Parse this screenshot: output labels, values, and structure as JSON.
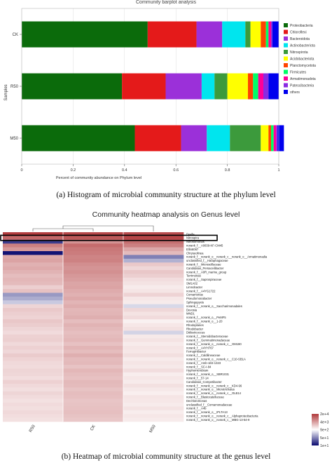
{
  "figure_a": {
    "caption": "(a) Histogram of microbial community structure at the phylum level"
  },
  "figure_b": {
    "caption": "(b) Heatmap of microbial community structure at the genus level"
  },
  "colors": {
    "highlight_box": "#000000",
    "grid": "#dddddd"
  },
  "chart_data": [
    {
      "type": "bar",
      "orientation": "horizontal",
      "stacked": true,
      "title": "Community barplot analysis",
      "xlabel": "Percent of community abundance on Phylum level",
      "ylabel": "Samples",
      "xlim": [
        0,
        1
      ],
      "xticks": [
        "0",
        "0.2",
        "0.4",
        "0.6",
        "0.8",
        "1"
      ],
      "categories": [
        "CK",
        "R50",
        "M50"
      ],
      "legend_position": "right",
      "series": [
        {
          "name": "Proteobacteria",
          "color": "#0b6b0b",
          "values": [
            0.49,
            0.39,
            0.44
          ]
        },
        {
          "name": "Chloroflexi",
          "color": "#e41a1a",
          "values": [
            0.19,
            0.17,
            0.18
          ]
        },
        {
          "name": "Bacteroidota",
          "color": "#9b30d9",
          "values": [
            0.1,
            0.14,
            0.1
          ]
        },
        {
          "name": "Actinobacteriota",
          "color": "#00e5ee",
          "values": [
            0.09,
            0.05,
            0.09
          ]
        },
        {
          "name": "Nitrospirota",
          "color": "#3c9a3c",
          "values": [
            0.02,
            0.05,
            0.12
          ]
        },
        {
          "name": "Acidobacteriota",
          "color": "#ffff00",
          "values": [
            0.04,
            0.08,
            0.03
          ]
        },
        {
          "name": "Planctomycetota",
          "color": "#ff4400",
          "values": [
            0.02,
            0.02,
            0.01
          ]
        },
        {
          "name": "Firmicutes",
          "color": "#00ff66",
          "values": [
            0.01,
            0.02,
            0.01
          ]
        },
        {
          "name": "Armatimonadota",
          "color": "#ff0099",
          "values": [
            0.01,
            0.02,
            0.01
          ]
        },
        {
          "name": "Patescibacteria",
          "color": "#8a2be2",
          "values": [
            0.005,
            0.02,
            0.005
          ]
        },
        {
          "name": "others",
          "color": "#0000ee",
          "values": [
            0.025,
            0.04,
            0.025
          ]
        }
      ]
    },
    {
      "type": "heatmap",
      "title": "Community heatmap analysis on Genus level",
      "columns": [
        "R50",
        "CK",
        "M50"
      ],
      "color_scale": {
        "colors": [
          "#0b0b70",
          "#ffffff",
          "#b0383a"
        ],
        "labels": [
          "2e+4",
          "4e+3",
          "9e+2",
          "5e+1",
          "1e+1"
        ]
      },
      "highlighted_row": "Nitrospira",
      "rows": [
        "Dyella",
        "Nitrospira",
        "Nitrosomonas",
        "norank_f__A0839-KF-CM45",
        "Ellin6067",
        "Chryseolinea",
        "norank_f__norank_o__norank_c__norank_o__Armatimonadia",
        "unclassified_f__Hafaphagaceae",
        "norank_f__Microscillaceae",
        "Candidatus_Persaceilibacter",
        "norank_f__A0R_marine_group",
        "Terrimonas",
        "norank_f__Saprospiraceae",
        "SM1A02",
        "Limnobacter",
        "norank_f__A4YG1722",
        "Comamonas",
        "Pseudomonabacter",
        "Sphingopyxis",
        "norank_f__norank_o__Saccharimonadales",
        "Devosia",
        "MND1",
        "norank_f__norank_o__PeMF5",
        "norank_f__norank_o__1-20",
        "Rhodoplanes",
        "Rhodobacter",
        "Ditiluviicoccus",
        "norank_f__Steroidobacteraceae",
        "norank_f__Gemmatimonadaceae",
        "norank_f__norank_o__norank_c__OM190",
        "norank_f__A4YH767",
        "Ferruginibacter",
        "norank_f__Caldilineaceae",
        "norank_f__norank_o__norank_c__C10-SB1A",
        "norank_f__Amb-16S-1323",
        "norank_f__SC-I-84",
        "Hyphomicrobium",
        "norank_f__norank_o__SBR1031",
        "norank_f__57-14",
        "Candidatus_Competibacter",
        "norank_f__norank_o__norank_c__KD4-96",
        "norank_f__norank_o__Microtrichales",
        "norank_f__norank_o__norank_c__OLB14",
        "norank_f__Blastocatellaceae",
        "Dechloromonas",
        "unclassified_f__Comamonadaceae",
        "norank_f__A4b",
        "norank_f__norank_o__IPLTA13",
        "norank_f__norank_o__norank_c__Alphaproteobacteria",
        "norank_f__norank_o__norank_c__MBG-13-54-9"
      ],
      "values": [
        [
          0.98,
          0.92,
          0.9
        ],
        [
          0.76,
          0.83,
          0.93
        ],
        [
          -0.8,
          0.55,
          0.72
        ],
        [
          0.64,
          0.74,
          0.64
        ],
        [
          0.52,
          0.68,
          0.44
        ],
        [
          -0.97,
          0.66,
          0.34
        ],
        [
          0.43,
          0.62,
          -0.52
        ],
        [
          0.46,
          0.63,
          -0.32
        ],
        [
          0.39,
          0.57,
          0.27
        ],
        [
          0.42,
          0.54,
          0.2
        ],
        [
          0.38,
          0.56,
          0.28
        ],
        [
          0.33,
          0.52,
          0.24
        ],
        [
          0.36,
          0.49,
          0.17
        ],
        [
          0.34,
          0.45,
          0.14
        ],
        [
          0.24,
          0.46,
          0.1
        ],
        [
          0.31,
          0.42,
          0.13
        ],
        [
          -0.42,
          0.39,
          0.22
        ],
        [
          -0.34,
          0.43,
          0.12
        ],
        [
          -0.22,
          0.37,
          0.1
        ],
        [
          0.21,
          0.41,
          -0.16
        ],
        [
          0.27,
          0.36,
          0.2
        ],
        [
          0.24,
          0.37,
          0.14
        ],
        [
          0.22,
          0.4,
          0.18
        ],
        [
          0.28,
          0.33,
          0.07
        ],
        [
          0.25,
          0.38,
          0.12
        ],
        [
          0.21,
          0.35,
          0.15
        ],
        [
          0.18,
          0.32,
          -0.18
        ],
        [
          0.23,
          0.34,
          0.11
        ],
        [
          0.24,
          0.36,
          0.14
        ],
        [
          0.19,
          0.31,
          0.1
        ],
        [
          0.23,
          0.37,
          0.13
        ],
        [
          0.2,
          0.33,
          0.12
        ],
        [
          0.26,
          0.4,
          0.16
        ],
        [
          0.22,
          0.34,
          0.1
        ],
        [
          0.19,
          0.35,
          0.13
        ],
        [
          0.18,
          0.3,
          0.11
        ],
        [
          0.21,
          0.36,
          0.17
        ],
        [
          0.2,
          0.33,
          0.09
        ],
        [
          0.17,
          0.31,
          0.12
        ],
        [
          0.23,
          0.35,
          0.1
        ],
        [
          0.19,
          0.34,
          0.15
        ],
        [
          0.16,
          0.3,
          0.11
        ],
        [
          0.21,
          0.33,
          0.08
        ],
        [
          0.18,
          0.32,
          0.13
        ],
        [
          0.15,
          0.29,
          0.12
        ],
        [
          0.18,
          0.3,
          0.1
        ],
        [
          0.16,
          0.31,
          0.14
        ],
        [
          0.19,
          0.32,
          0.09
        ],
        [
          0.17,
          0.3,
          0.12
        ],
        [
          0.15,
          0.28,
          0.1
        ]
      ]
    }
  ]
}
